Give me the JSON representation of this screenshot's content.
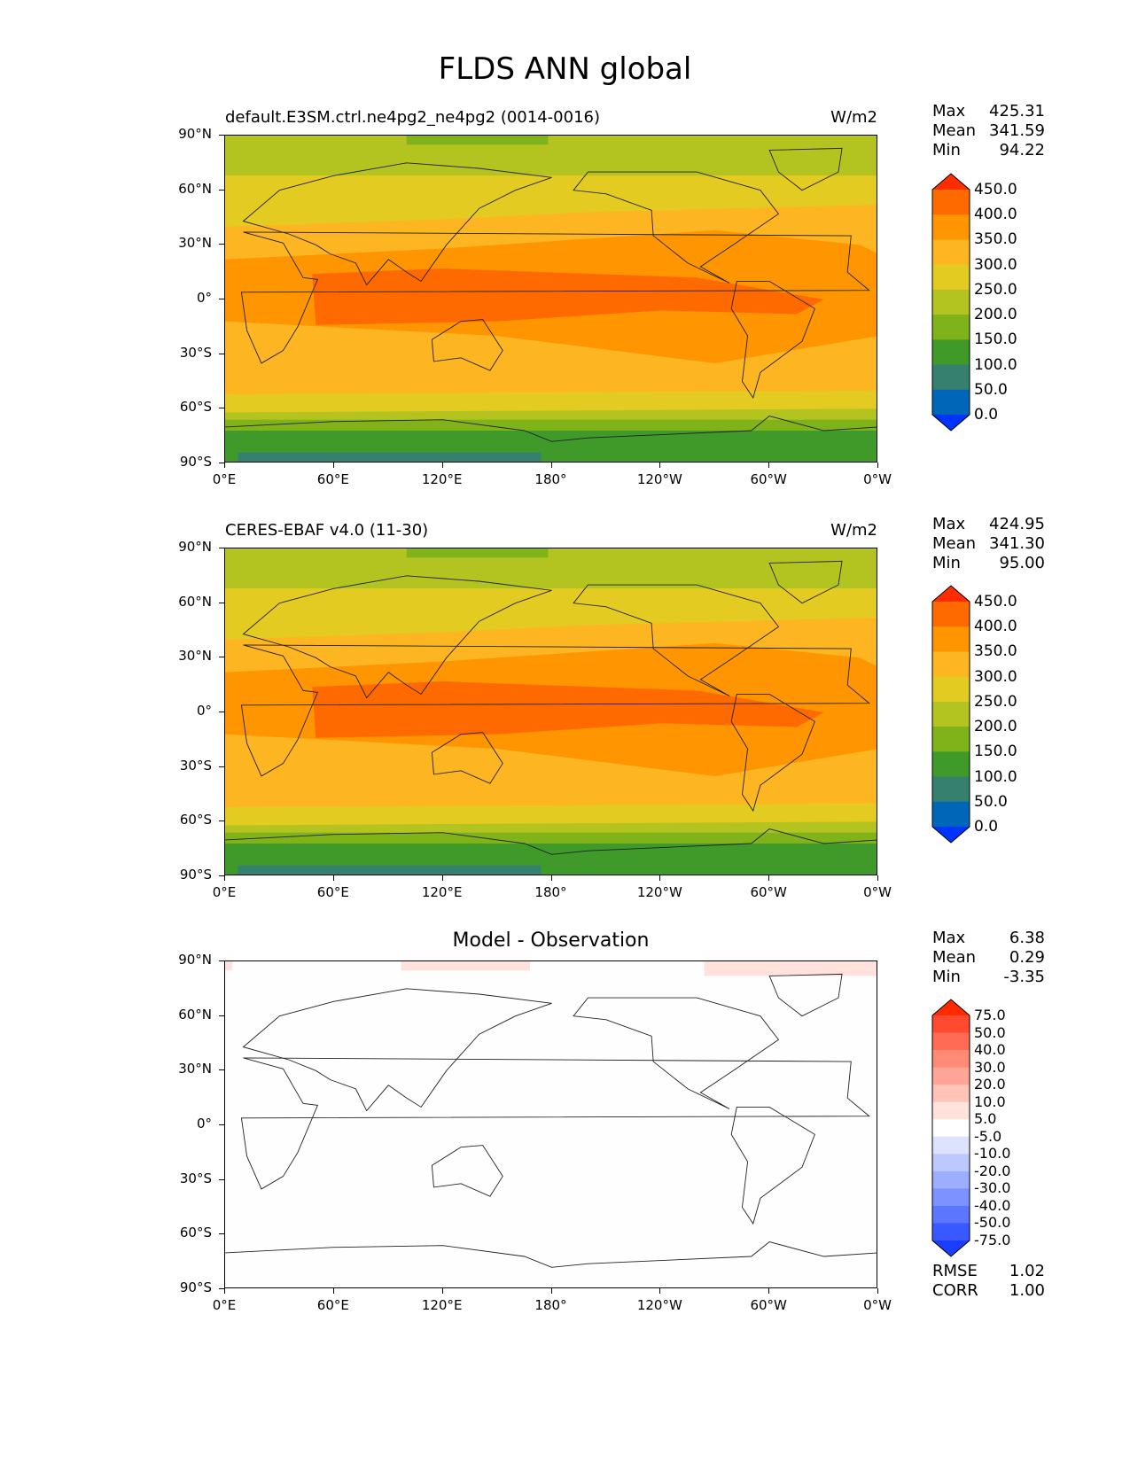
{
  "figure_title": "FLDS ANN global",
  "x_ticks": [
    "0°E",
    "60°E",
    "120°E",
    "180°",
    "120°W",
    "60°W",
    "0°W"
  ],
  "y_ticks": [
    "90°N",
    "60°N",
    "30°N",
    "0°",
    "30°S",
    "60°S",
    "90°S"
  ],
  "panels": [
    {
      "title": "default.E3SM.ctrl.ne4pg2_ne4pg2 (0014-0016)",
      "units": "W/m2",
      "stats": [
        {
          "label": "Max",
          "value": "425.31"
        },
        {
          "label": "Mean",
          "value": "341.59"
        },
        {
          "label": "Min",
          "value": "94.22"
        }
      ],
      "colorbar": {
        "labels": [
          "450.0",
          "400.0",
          "350.0",
          "300.0",
          "250.0",
          "200.0",
          "150.0",
          "100.0",
          "50.0",
          "0.0"
        ],
        "colors": [
          "#ff2d00",
          "#ff6a00",
          "#ff9500",
          "#fdb521",
          "#e4cb21",
          "#b3c420",
          "#7fb319",
          "#3f9a2a",
          "#35806f",
          "#0066b8",
          "#0033ff"
        ]
      }
    },
    {
      "title": "CERES-EBAF v4.0 (11-30)",
      "units": "W/m2",
      "stats": [
        {
          "label": "Max",
          "value": "424.95"
        },
        {
          "label": "Mean",
          "value": "341.30"
        },
        {
          "label": "Min",
          "value": "95.00"
        }
      ],
      "colorbar": {
        "labels": [
          "450.0",
          "400.0",
          "350.0",
          "300.0",
          "250.0",
          "200.0",
          "150.0",
          "100.0",
          "50.0",
          "0.0"
        ],
        "colors": [
          "#ff2d00",
          "#ff6a00",
          "#ff9500",
          "#fdb521",
          "#e4cb21",
          "#b3c420",
          "#7fb319",
          "#3f9a2a",
          "#35806f",
          "#0066b8",
          "#0033ff"
        ]
      }
    },
    {
      "title": "Model - Observation",
      "units": "",
      "stats": [
        {
          "label": "Max",
          "value": "6.38"
        },
        {
          "label": "Mean",
          "value": "0.29"
        },
        {
          "label": "Min",
          "value": "-3.35"
        }
      ],
      "extra_stats": [
        {
          "label": "RMSE",
          "value": "1.02"
        },
        {
          "label": "CORR",
          "value": "1.00"
        }
      ],
      "colorbar": {
        "labels": [
          "75.0",
          "50.0",
          "40.0",
          "30.0",
          "20.0",
          "10.0",
          "5.0",
          "-5.0",
          "-10.0",
          "-20.0",
          "-30.0",
          "-40.0",
          "-50.0",
          "-75.0"
        ],
        "colors": [
          "#ff2a00",
          "#ff4a30",
          "#ff6b55",
          "#ff8a75",
          "#ffa597",
          "#ffc3b8",
          "#ffe2dc",
          "#ffffff",
          "#dde3ff",
          "#bdc8ff",
          "#9dadff",
          "#7d92ff",
          "#5c76ff",
          "#3a58ff",
          "#1a3dff"
        ]
      }
    }
  ]
}
